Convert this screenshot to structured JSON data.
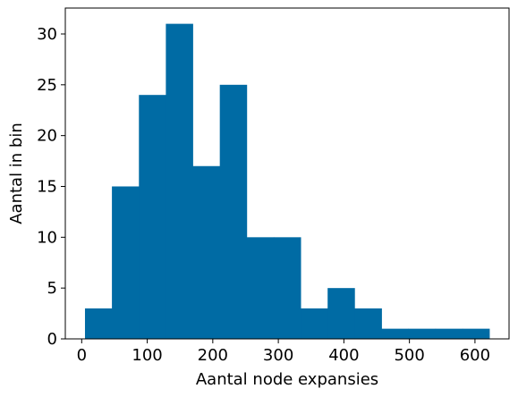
{
  "chart_data": {
    "type": "bar",
    "title": "",
    "xlabel": "Aantal node expansies",
    "ylabel": "Aantal in bin",
    "bar_color": "#006BA4",
    "bins": [
      {
        "x0": 5,
        "x1": 46.1,
        "count": 3
      },
      {
        "x0": 46.1,
        "x1": 87.3,
        "count": 15
      },
      {
        "x0": 87.3,
        "x1": 128.4,
        "count": 24
      },
      {
        "x0": 128.4,
        "x1": 169.5,
        "count": 31
      },
      {
        "x0": 169.5,
        "x1": 210.7,
        "count": 17
      },
      {
        "x0": 210.7,
        "x1": 251.8,
        "count": 25
      },
      {
        "x0": 251.8,
        "x1": 292.9,
        "count": 10
      },
      {
        "x0": 292.9,
        "x1": 334.1,
        "count": 10
      },
      {
        "x0": 334.1,
        "x1": 375.2,
        "count": 3
      },
      {
        "x0": 375.2,
        "x1": 416.3,
        "count": 5
      },
      {
        "x0": 416.3,
        "x1": 457.5,
        "count": 3
      },
      {
        "x0": 457.5,
        "x1": 498.6,
        "count": 1
      },
      {
        "x0": 498.6,
        "x1": 539.7,
        "count": 1
      },
      {
        "x0": 539.7,
        "x1": 580.9,
        "count": 1
      },
      {
        "x0": 580.9,
        "x1": 622,
        "count": 1
      }
    ],
    "xlim": [
      -25,
      652
    ],
    "ylim": [
      0,
      32.55
    ],
    "xticks": [
      0,
      100,
      200,
      300,
      400,
      500,
      600
    ],
    "xtick_labels": [
      "0",
      "100",
      "200",
      "300",
      "400",
      "500",
      "600"
    ],
    "yticks": [
      0,
      5,
      10,
      15,
      20,
      25,
      30
    ],
    "ytick_labels": [
      "0",
      "5",
      "10",
      "15",
      "20",
      "25",
      "30"
    ],
    "grid": false,
    "legend": false
  }
}
